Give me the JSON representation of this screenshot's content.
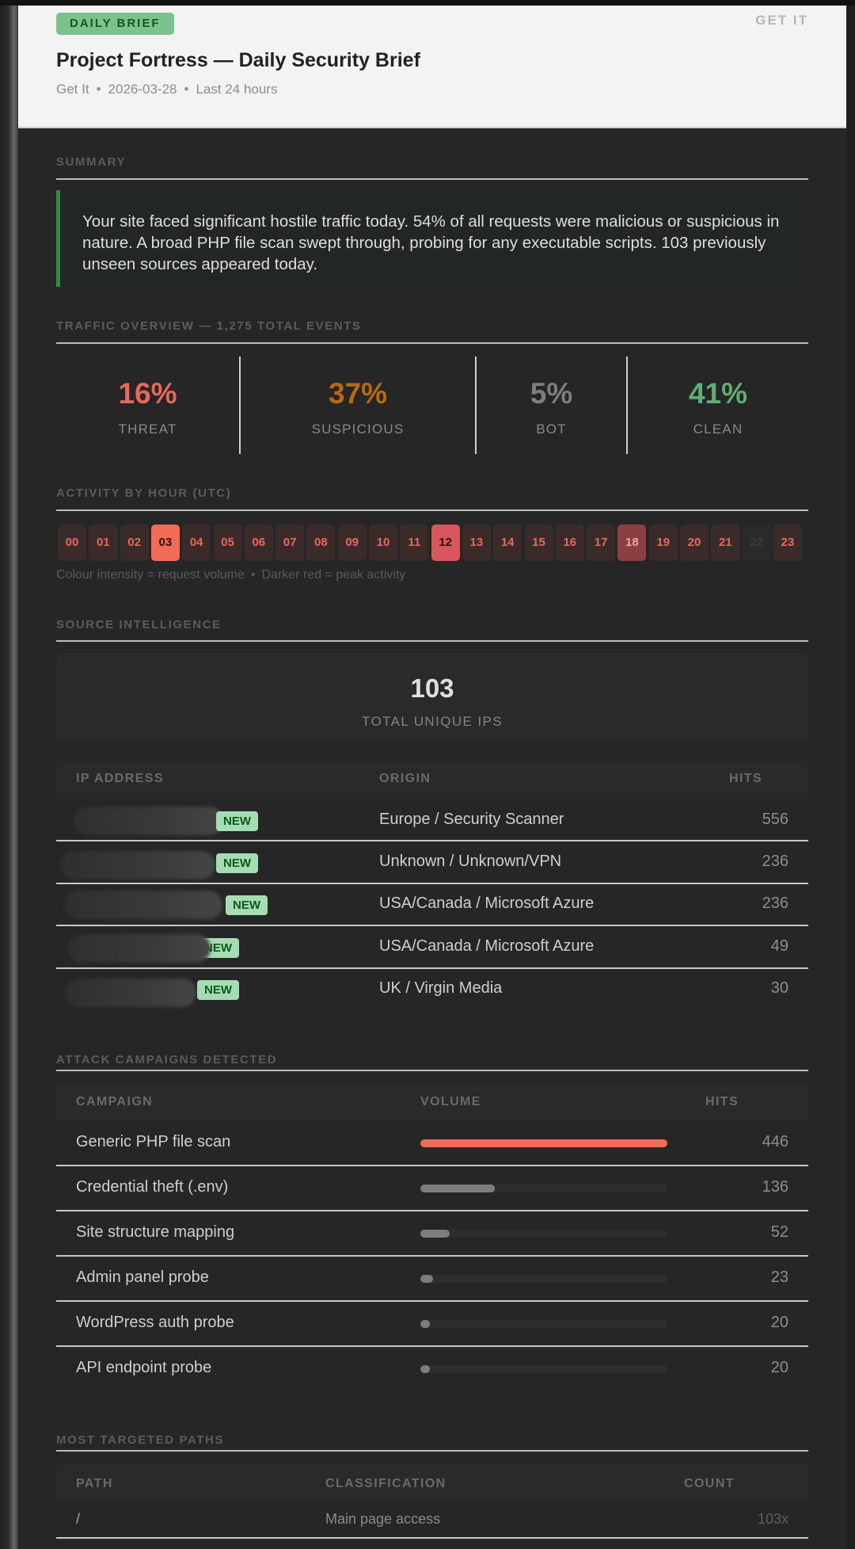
{
  "header": {
    "badge": "DAILY BRIEF",
    "brand": "GET IT",
    "title": "Project Fortress — Daily Security Brief",
    "meta": {
      "site": "Get It",
      "date": "2026-03-28",
      "range": "Last 24 hours",
      "separator": "•"
    }
  },
  "summary": {
    "label": "SUMMARY",
    "text": "Your site faced significant hostile traffic today. 54% of all requests were malicious or suspicious in nature. A broad PHP file scan swept through, probing for any executable scripts. 103 previously unseen sources appeared today.",
    "accent_color": "#2e8b45"
  },
  "traffic": {
    "label": "TRAFFIC OVERVIEW — 1,275 TOTAL EVENTS",
    "total_events": "1,275",
    "stats": [
      {
        "value": "16%",
        "label": "THREAT",
        "color": "#e8685a"
      },
      {
        "value": "37%",
        "label": "SUSPICIOUS",
        "color": "#b96a12"
      },
      {
        "value": "5%",
        "label": "BOT",
        "color": "#7e7e7e"
      },
      {
        "value": "41%",
        "label": "CLEAN",
        "color": "#5fae72"
      }
    ]
  },
  "activity": {
    "label": "ACTIVITY BY HOUR (UTC)",
    "hours": [
      {
        "h": "00",
        "level": "low"
      },
      {
        "h": "01",
        "level": "low"
      },
      {
        "h": "02",
        "level": "low"
      },
      {
        "h": "03",
        "level": "peak"
      },
      {
        "h": "04",
        "level": "low"
      },
      {
        "h": "05",
        "level": "low"
      },
      {
        "h": "06",
        "level": "low"
      },
      {
        "h": "07",
        "level": "low"
      },
      {
        "h": "08",
        "level": "low"
      },
      {
        "h": "09",
        "level": "low"
      },
      {
        "h": "10",
        "level": "low"
      },
      {
        "h": "11",
        "level": "low"
      },
      {
        "h": "12",
        "level": "high"
      },
      {
        "h": "13",
        "level": "low"
      },
      {
        "h": "14",
        "level": "low"
      },
      {
        "h": "15",
        "level": "low"
      },
      {
        "h": "16",
        "level": "low"
      },
      {
        "h": "17",
        "level": "low"
      },
      {
        "h": "18",
        "level": "medium"
      },
      {
        "h": "19",
        "level": "low"
      },
      {
        "h": "20",
        "level": "low"
      },
      {
        "h": "21",
        "level": "low"
      },
      {
        "h": "22",
        "level": "none"
      },
      {
        "h": "23",
        "level": "low"
      }
    ],
    "legend": {
      "left": "Colour intensity = request volume",
      "separator": "•",
      "right": "Darker red = peak activity"
    }
  },
  "sources": {
    "label": "SOURCE INTELLIGENCE",
    "unique_count": "103",
    "unique_label": "TOTAL UNIQUE IPS",
    "columns": {
      "ip": "IP ADDRESS",
      "origin": "ORIGIN",
      "hits": "HITS"
    },
    "rows": [
      {
        "ip": "[redacted]",
        "badge": "NEW",
        "origin": "Europe / Security Scanner",
        "hits": "556"
      },
      {
        "ip": "[redacted]",
        "badge": "NEW",
        "origin": "Unknown / Unknown/VPN",
        "hits": "236"
      },
      {
        "ip": "[redacted]",
        "badge": "NEW",
        "origin": "USA/Canada / Microsoft Azure",
        "hits": "236"
      },
      {
        "ip": "[redacted]",
        "badge": "NEW",
        "origin": "USA/Canada / Microsoft Azure",
        "hits": "49"
      },
      {
        "ip": "[redacted]",
        "badge": "NEW",
        "origin": "UK / Virgin Media",
        "hits": "30"
      }
    ]
  },
  "campaigns": {
    "label": "ATTACK CAMPAIGNS DETECTED",
    "columns": {
      "campaign": "CAMPAIGN",
      "volume": "VOLUME",
      "hits": "HITS"
    },
    "rows": [
      {
        "name": "Generic PHP file scan",
        "hits": "446",
        "pct": 100,
        "color": "#f26b57"
      },
      {
        "name": "Credential theft (.env)",
        "hits": "136",
        "pct": 30,
        "color": "#7d7d7d"
      },
      {
        "name": "Site structure mapping",
        "hits": "52",
        "pct": 12,
        "color": "#7d7d7d"
      },
      {
        "name": "Admin panel probe",
        "hits": "23",
        "pct": 5,
        "color": "#7d7d7d"
      },
      {
        "name": "WordPress auth probe",
        "hits": "20",
        "pct": 4,
        "color": "#7d7d7d"
      },
      {
        "name": "API endpoint probe",
        "hits": "20",
        "pct": 4,
        "color": "#7d7d7d"
      }
    ]
  },
  "paths": {
    "label": "MOST TARGETED PATHS",
    "columns": {
      "path": "PATH",
      "classification": "CLASSIFICATION",
      "count": "COUNT"
    },
    "rows": [
      {
        "path": "/",
        "classification": "Main page access",
        "count": "103x"
      }
    ]
  }
}
